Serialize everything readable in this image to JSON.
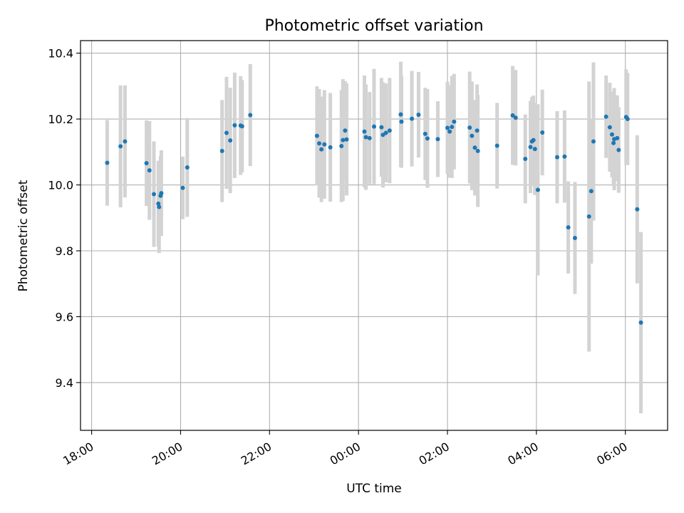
{
  "chart_data": {
    "type": "scatter",
    "title": "Photometric offset variation",
    "xlabel": "UTC time",
    "ylabel": "Photometric offset",
    "x_unit": "UTC time (HH:MM, evening to next morning)",
    "xlim": [
      "17:45",
      "06:57"
    ],
    "ylim": [
      9.255,
      10.438
    ],
    "xticks": [
      "18:00",
      "20:00",
      "22:00",
      "00:00",
      "02:00",
      "04:00",
      "06:00"
    ],
    "yticks": [
      "9.4",
      "9.6",
      "9.8",
      "10.0",
      "10.2",
      "10.4"
    ],
    "grid": true,
    "legend": "none",
    "colors": {
      "point": "#1f77b4",
      "errorbar": "#d3d3d3",
      "grid": "#b0b0b0"
    },
    "series": [
      {
        "x": [
          "18:21",
          "18:39",
          "18:45",
          "19:14",
          "19:18",
          "19:24",
          "19:30",
          "19:31",
          "19:33",
          "19:34",
          "20:03",
          "20:09",
          "20:56",
          "21:02",
          "21:07",
          "21:13",
          "21:21",
          "21:23",
          "21:34",
          "23:04",
          "23:07",
          "23:10",
          "23:14",
          "23:22",
          "23:37",
          "23:39",
          "23:42",
          "23:44",
          "00:08",
          "00:10",
          "00:15",
          "00:21",
          "00:31",
          "00:33",
          "00:37",
          "00:42",
          "00:57",
          "00:58",
          "01:12",
          "01:21",
          "01:30",
          "01:33",
          "01:47",
          "02:00",
          "02:03",
          "02:06",
          "02:09",
          "02:30",
          "02:33",
          "02:37",
          "02:40",
          "02:41",
          "03:07",
          "03:28",
          "03:32",
          "03:45",
          "03:52",
          "03:54",
          "03:56",
          "03:58",
          "04:02",
          "04:08",
          "04:28",
          "04:38",
          "04:43",
          "04:52",
          "05:11",
          "05:14",
          "05:17",
          "05:34",
          "05:39",
          "05:42",
          "05:44",
          "05:45",
          "05:49",
          "05:51",
          "06:01",
          "06:03",
          "06:16",
          "06:21"
        ],
        "y": [
          10.067,
          10.117,
          10.132,
          10.066,
          10.044,
          9.972,
          9.943,
          9.933,
          9.967,
          9.975,
          9.991,
          10.053,
          10.103,
          10.158,
          10.135,
          10.181,
          10.18,
          10.178,
          10.212,
          10.149,
          10.126,
          10.108,
          10.123,
          10.114,
          10.118,
          10.136,
          10.165,
          10.138,
          10.162,
          10.145,
          10.142,
          10.177,
          10.175,
          10.152,
          10.158,
          10.165,
          10.214,
          10.192,
          10.201,
          10.213,
          10.155,
          10.141,
          10.139,
          10.173,
          10.162,
          10.176,
          10.192,
          10.174,
          10.149,
          10.113,
          10.165,
          10.103,
          10.119,
          10.211,
          10.204,
          10.079,
          10.115,
          10.132,
          10.136,
          10.109,
          9.985,
          10.159,
          10.084,
          10.086,
          9.871,
          9.839,
          9.904,
          9.981,
          10.132,
          10.207,
          10.175,
          10.153,
          10.127,
          10.139,
          10.142,
          10.106,
          10.206,
          10.2,
          9.926,
          9.582
        ],
        "yerr": [
          0.13,
          0.185,
          0.17,
          0.13,
          0.15,
          0.16,
          0.13,
          0.14,
          0.12,
          0.13,
          0.095,
          0.15,
          0.155,
          0.17,
          0.16,
          0.16,
          0.15,
          0.14,
          0.155,
          0.15,
          0.165,
          0.16,
          0.165,
          0.165,
          0.17,
          0.185,
          0.15,
          0.17,
          0.17,
          0.16,
          0.14,
          0.175,
          0.15,
          0.16,
          0.15,
          0.16,
          0.16,
          0.14,
          0.145,
          0.13,
          0.14,
          0.15,
          0.115,
          0.14,
          0.14,
          0.155,
          0.145,
          0.17,
          0.165,
          0.145,
          0.14,
          0.17,
          0.13,
          0.15,
          0.145,
          0.135,
          0.14,
          0.135,
          0.135,
          0.14,
          0.26,
          0.13,
          0.14,
          0.14,
          0.14,
          0.17,
          0.41,
          0.22,
          0.24,
          0.125,
          0.135,
          0.13,
          0.13,
          0.155,
          0.13,
          0.13,
          0.145,
          0.14,
          0.225,
          0.275
        ]
      }
    ]
  }
}
